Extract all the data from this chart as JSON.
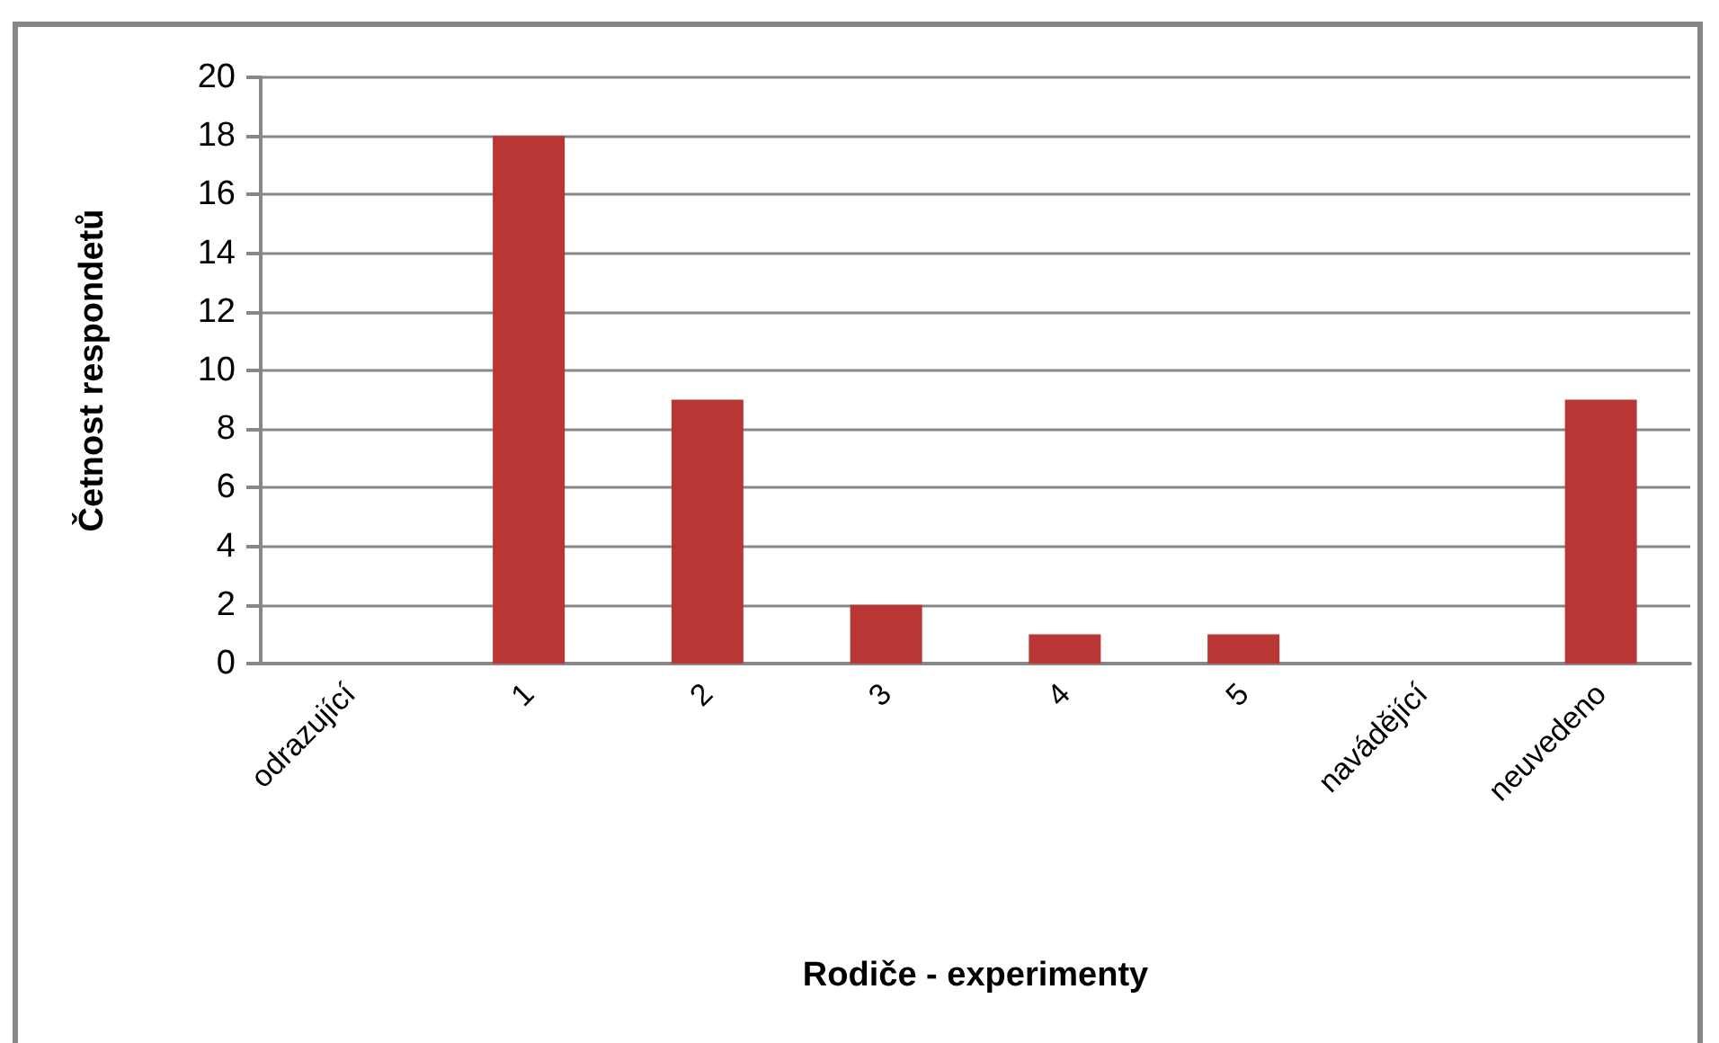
{
  "chart_data": {
    "type": "bar",
    "xlabel": "Rodiče - experimenty",
    "ylabel": "Četnost respondetů",
    "categories": [
      "odrazující",
      "1",
      "2",
      "3",
      "4",
      "5",
      "navádějící",
      "neuvedeno"
    ],
    "values": [
      0,
      18,
      9,
      2,
      1,
      1,
      0,
      9
    ],
    "color": "#b93635",
    "ylim": [
      0,
      20
    ],
    "yticks": [
      0,
      2,
      4,
      6,
      8,
      10,
      12,
      14,
      16,
      18,
      20
    ],
    "grid": "y"
  }
}
